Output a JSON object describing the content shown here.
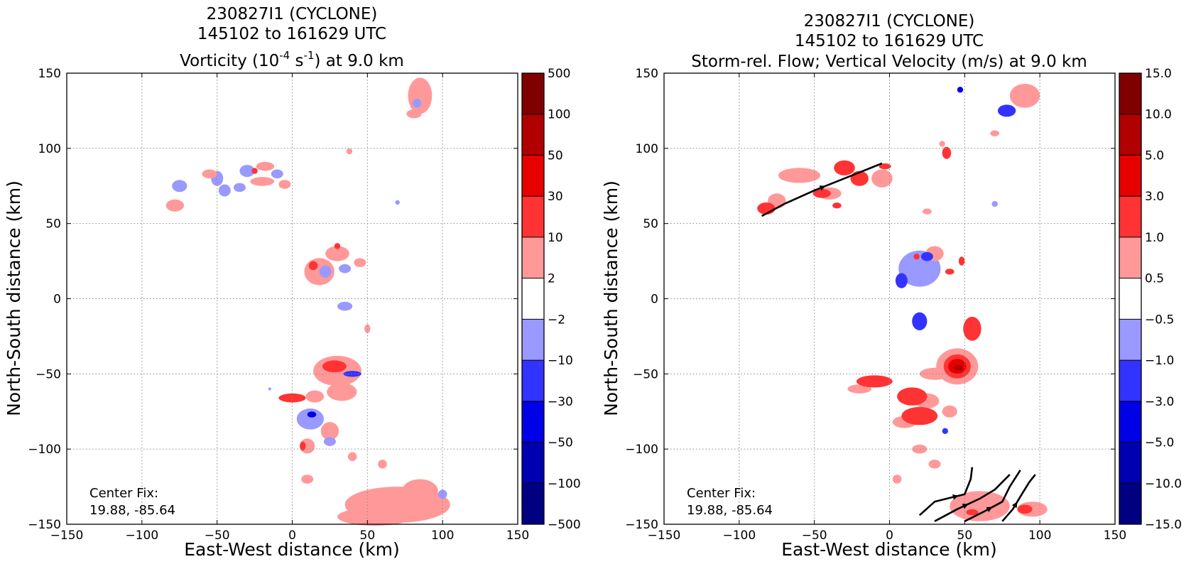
{
  "colors": {
    "neg": [
      "#000080",
      "#0000b0",
      "#0000e6",
      "#3333ff",
      "#9999ff"
    ],
    "mid": "#ffffff",
    "pos": [
      "#ff9999",
      "#ff3333",
      "#e60000",
      "#b00000",
      "#800000"
    ],
    "grid": "#888888",
    "streamline": "#000000"
  },
  "chart_data": [
    {
      "type": "heatmap",
      "title": [
        "230827I1 (CYCLONE)",
        "145102 to 161629 UTC"
      ],
      "subtitle_parts": [
        "Vorticity (10",
        "-4",
        " s",
        "-1",
        ") at 9.0 km"
      ],
      "xlabel": "East-West distance (km)",
      "ylabel": "North-South distance (km)",
      "xlim": [
        -150,
        150
      ],
      "ylim": [
        -150,
        150
      ],
      "x_ticks": [
        "−150",
        "−100",
        "−50",
        "0",
        "50",
        "100",
        "150"
      ],
      "y_ticks": [
        "150",
        "100",
        "50",
        "0",
        "−50",
        "−100",
        "−150"
      ],
      "grid": true,
      "colorbar_levels": [
        "500",
        "100",
        "50",
        "30",
        "10",
        "2",
        "−2",
        "−10",
        "−30",
        "−50",
        "−100",
        "−500"
      ],
      "annotation": [
        "Center Fix:",
        "19.88, -85.64"
      ],
      "patches": [
        {
          "level": 1,
          "x": 85,
          "y": 135,
          "rx": 8,
          "ry": 12
        },
        {
          "level": 1,
          "x": 81,
          "y": 123,
          "rx": 5,
          "ry": 3
        },
        {
          "level": -1,
          "x": 83,
          "y": 130,
          "rx": 3,
          "ry": 3
        },
        {
          "level": -1,
          "x": -75,
          "y": 75,
          "rx": 5,
          "ry": 4
        },
        {
          "level": 1,
          "x": -78,
          "y": 62,
          "rx": 6,
          "ry": 4
        },
        {
          "level": -1,
          "x": -50,
          "y": 80,
          "rx": 4,
          "ry": 5
        },
        {
          "level": -1,
          "x": -45,
          "y": 72,
          "rx": 4,
          "ry": 4
        },
        {
          "level": 1,
          "x": -55,
          "y": 83,
          "rx": 5,
          "ry": 3
        },
        {
          "level": -1,
          "x": -30,
          "y": 85,
          "rx": 5,
          "ry": 4
        },
        {
          "level": -1,
          "x": -35,
          "y": 74,
          "rx": 4,
          "ry": 3
        },
        {
          "level": 1,
          "x": -20,
          "y": 78,
          "rx": 8,
          "ry": 3
        },
        {
          "level": 1,
          "x": -18,
          "y": 88,
          "rx": 6,
          "ry": 3
        },
        {
          "level": -1,
          "x": -10,
          "y": 83,
          "rx": 4,
          "ry": 3
        },
        {
          "level": 2,
          "x": -25,
          "y": 85,
          "rx": 2,
          "ry": 2
        },
        {
          "level": 1,
          "x": -5,
          "y": 76,
          "rx": 4,
          "ry": 3
        },
        {
          "level": 1,
          "x": 38,
          "y": 98,
          "rx": 2,
          "ry": 2
        },
        {
          "level": -1,
          "x": 70,
          "y": 64,
          "rx": 1.5,
          "ry": 1.5
        },
        {
          "level": 1,
          "x": 18,
          "y": 18,
          "rx": 10,
          "ry": 9
        },
        {
          "level": 1,
          "x": 30,
          "y": 30,
          "rx": 8,
          "ry": 5
        },
        {
          "level": 2,
          "x": 14,
          "y": 22,
          "rx": 3,
          "ry": 3
        },
        {
          "level": 2,
          "x": 30,
          "y": 35,
          "rx": 2,
          "ry": 2
        },
        {
          "level": -1,
          "x": 22,
          "y": 18,
          "rx": 4,
          "ry": 4
        },
        {
          "level": -1,
          "x": 35,
          "y": 20,
          "rx": 4,
          "ry": 3
        },
        {
          "level": 1,
          "x": 45,
          "y": 24,
          "rx": 4,
          "ry": 3
        },
        {
          "level": -1,
          "x": 35,
          "y": -5,
          "rx": 5,
          "ry": 3
        },
        {
          "level": 1,
          "x": 30,
          "y": -48,
          "rx": 16,
          "ry": 10
        },
        {
          "level": 2,
          "x": 28,
          "y": -45,
          "rx": 8,
          "ry": 4
        },
        {
          "level": -2,
          "x": 40,
          "y": -50,
          "rx": 6,
          "ry": 2
        },
        {
          "level": 1,
          "x": 50,
          "y": -20,
          "rx": 2,
          "ry": 3
        },
        {
          "level": 1,
          "x": 33,
          "y": -62,
          "rx": 10,
          "ry": 6
        },
        {
          "level": 2,
          "x": 0,
          "y": -66,
          "rx": 9,
          "ry": 3
        },
        {
          "level": 1,
          "x": 15,
          "y": -65,
          "rx": 6,
          "ry": 4
        },
        {
          "level": -1,
          "x": 12,
          "y": -80,
          "rx": 9,
          "ry": 7
        },
        {
          "level": -3,
          "x": 13,
          "y": -77,
          "rx": 3,
          "ry": 2
        },
        {
          "level": 1,
          "x": 25,
          "y": -88,
          "rx": 6,
          "ry": 6
        },
        {
          "level": -1,
          "x": 25,
          "y": -95,
          "rx": 4,
          "ry": 3
        },
        {
          "level": 1,
          "x": 10,
          "y": -98,
          "rx": 5,
          "ry": 5
        },
        {
          "level": 2,
          "x": 7,
          "y": -98,
          "rx": 2,
          "ry": 3
        },
        {
          "level": 1,
          "x": 40,
          "y": -105,
          "rx": 3,
          "ry": 3
        },
        {
          "level": 1,
          "x": 60,
          "y": -110,
          "rx": 3,
          "ry": 3
        },
        {
          "level": -1,
          "x": -15,
          "y": -60,
          "rx": 1,
          "ry": 1
        },
        {
          "level": 1,
          "x": 70,
          "y": -137,
          "rx": 35,
          "ry": 12
        },
        {
          "level": 1,
          "x": 55,
          "y": -145,
          "rx": 25,
          "ry": 6
        },
        {
          "level": 1,
          "x": 85,
          "y": -128,
          "rx": 12,
          "ry": 8
        },
        {
          "level": -1,
          "x": 100,
          "y": -130,
          "rx": 3,
          "ry": 3
        },
        {
          "level": 1,
          "x": 10,
          "y": -120,
          "rx": 4,
          "ry": 3
        }
      ],
      "streamlines": []
    },
    {
      "type": "heatmap",
      "title": [
        "230827I1 (CYCLONE)",
        "145102 to 161629 UTC"
      ],
      "subtitle_parts": [
        "Storm-rel. Flow; Vertical Velocity (m/s) at 9.0 km"
      ],
      "xlabel": "East-West distance (km)",
      "ylabel": "North-South distance (km)",
      "xlim": [
        -150,
        150
      ],
      "ylim": [
        -150,
        150
      ],
      "x_ticks": [
        "−150",
        "−100",
        "−50",
        "0",
        "50",
        "100",
        "150"
      ],
      "y_ticks": [
        "150",
        "100",
        "50",
        "0",
        "−50",
        "−100",
        "−150"
      ],
      "grid": true,
      "colorbar_levels": [
        "15.0",
        "10.0",
        "5.0",
        "3.0",
        "1.0",
        "0.5",
        "−0.5",
        "−1.0",
        "−3.0",
        "−5.0",
        "−10.0",
        "−15.0"
      ],
      "annotation": [
        "Center Fix:",
        "19.88, -85.64"
      ],
      "patches": [
        {
          "level": -3,
          "x": 47,
          "y": 139,
          "rx": 2,
          "ry": 2
        },
        {
          "level": 1,
          "x": 90,
          "y": 135,
          "rx": 10,
          "ry": 8
        },
        {
          "level": -2,
          "x": 78,
          "y": 125,
          "rx": 6,
          "ry": 4
        },
        {
          "level": 1,
          "x": 70,
          "y": 110,
          "rx": 3,
          "ry": 2
        },
        {
          "level": 1,
          "x": -60,
          "y": 82,
          "rx": 14,
          "ry": 5
        },
        {
          "level": 2,
          "x": -82,
          "y": 60,
          "rx": 6,
          "ry": 4
        },
        {
          "level": 1,
          "x": -75,
          "y": 65,
          "rx": 6,
          "ry": 5
        },
        {
          "level": 2,
          "x": -30,
          "y": 87,
          "rx": 7,
          "ry": 5
        },
        {
          "level": 2,
          "x": -20,
          "y": 80,
          "rx": 6,
          "ry": 5
        },
        {
          "level": 1,
          "x": -5,
          "y": 80,
          "rx": 7,
          "ry": 6
        },
        {
          "level": 2,
          "x": -3,
          "y": 88,
          "rx": 4,
          "ry": 2
        },
        {
          "level": 2,
          "x": -45,
          "y": 70,
          "rx": 6,
          "ry": 3
        },
        {
          "level": 1,
          "x": -40,
          "y": 70,
          "rx": 8,
          "ry": 4
        },
        {
          "level": 2,
          "x": -35,
          "y": 62,
          "rx": 3,
          "ry": 2
        },
        {
          "level": 2,
          "x": 38,
          "y": 97,
          "rx": 3,
          "ry": 4
        },
        {
          "level": 1,
          "x": 35,
          "y": 103,
          "rx": 2,
          "ry": 2
        },
        {
          "level": 1,
          "x": 25,
          "y": 58,
          "rx": 3,
          "ry": 2
        },
        {
          "level": -1,
          "x": 70,
          "y": 63,
          "rx": 2,
          "ry": 2
        },
        {
          "level": -1,
          "x": 20,
          "y": 20,
          "rx": 14,
          "ry": 12
        },
        {
          "level": -2,
          "x": 8,
          "y": 12,
          "rx": 4,
          "ry": 5
        },
        {
          "level": 1,
          "x": 30,
          "y": 30,
          "rx": 6,
          "ry": 5
        },
        {
          "level": -2,
          "x": 25,
          "y": 28,
          "rx": 4,
          "ry": 3
        },
        {
          "level": 2,
          "x": 18,
          "y": 28,
          "rx": 2,
          "ry": 2
        },
        {
          "level": 2,
          "x": 40,
          "y": 18,
          "rx": 3,
          "ry": 2
        },
        {
          "level": 2,
          "x": 48,
          "y": 25,
          "rx": 2,
          "ry": 3
        },
        {
          "level": -2,
          "x": 20,
          "y": -15,
          "rx": 5,
          "ry": 6
        },
        {
          "level": 2,
          "x": 55,
          "y": -20,
          "rx": 6,
          "ry": 8
        },
        {
          "level": 1,
          "x": 45,
          "y": -45,
          "rx": 14,
          "ry": 12
        },
        {
          "level": 2,
          "x": 45,
          "y": -45,
          "rx": 9,
          "ry": 8
        },
        {
          "level": 3,
          "x": 45,
          "y": -45,
          "rx": 6,
          "ry": 5
        },
        {
          "level": 4,
          "x": 46,
          "y": -46,
          "rx": 3,
          "ry": 2
        },
        {
          "level": 1,
          "x": 30,
          "y": -50,
          "rx": 10,
          "ry": 4
        },
        {
          "level": 2,
          "x": -10,
          "y": -55,
          "rx": 12,
          "ry": 4
        },
        {
          "level": 1,
          "x": -20,
          "y": -60,
          "rx": 8,
          "ry": 3
        },
        {
          "level": 2,
          "x": 15,
          "y": -65,
          "rx": 10,
          "ry": 6
        },
        {
          "level": 1,
          "x": 25,
          "y": -68,
          "rx": 8,
          "ry": 5
        },
        {
          "level": 2,
          "x": 20,
          "y": -78,
          "rx": 12,
          "ry": 6
        },
        {
          "level": 1,
          "x": 10,
          "y": -82,
          "rx": 8,
          "ry": 4
        },
        {
          "level": 1,
          "x": 40,
          "y": -75,
          "rx": 5,
          "ry": 4
        },
        {
          "level": -2,
          "x": 37,
          "y": -88,
          "rx": 2,
          "ry": 2
        },
        {
          "level": 1,
          "x": 20,
          "y": -100,
          "rx": 5,
          "ry": 3
        },
        {
          "level": 1,
          "x": 30,
          "y": -110,
          "rx": 4,
          "ry": 3
        },
        {
          "level": 1,
          "x": 60,
          "y": -138,
          "rx": 20,
          "ry": 10
        },
        {
          "level": 2,
          "x": 55,
          "y": -142,
          "rx": 4,
          "ry": 2
        },
        {
          "level": 2,
          "x": 90,
          "y": -140,
          "rx": 5,
          "ry": 3
        },
        {
          "level": 1,
          "x": 95,
          "y": -140,
          "rx": 10,
          "ry": 5
        },
        {
          "level": 1,
          "x": 5,
          "y": -120,
          "rx": 3,
          "ry": 3
        }
      ],
      "streamlines": [
        [
          [
            -85,
            55
          ],
          [
            -70,
            63
          ],
          [
            -50,
            72
          ],
          [
            -35,
            78
          ],
          [
            -20,
            84
          ],
          [
            -5,
            90
          ]
        ],
        [
          [
            20,
            -144
          ],
          [
            30,
            -135
          ],
          [
            42,
            -132
          ],
          [
            50,
            -130
          ],
          [
            54,
            -120
          ],
          [
            55,
            -112
          ]
        ],
        [
          [
            30,
            -148
          ],
          [
            45,
            -140
          ],
          [
            60,
            -133
          ],
          [
            70,
            -127
          ],
          [
            80,
            -117
          ]
        ],
        [
          [
            50,
            -148
          ],
          [
            62,
            -142
          ],
          [
            75,
            -135
          ],
          [
            80,
            -125
          ],
          [
            87,
            -114
          ]
        ],
        [
          [
            75,
            -148
          ],
          [
            82,
            -140
          ],
          [
            88,
            -130
          ],
          [
            93,
            -122
          ],
          [
            97,
            -117
          ]
        ]
      ]
    }
  ]
}
